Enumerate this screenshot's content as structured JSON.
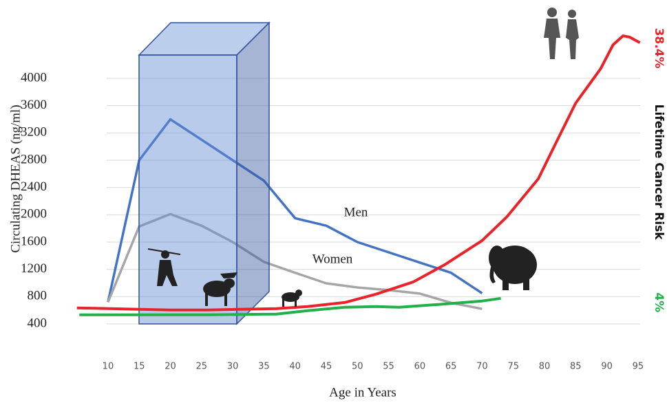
{
  "chart_data": {
    "type": "line",
    "xlabel": "Age in Years",
    "ylabel": "Circulating DHEAS (ng/ml)",
    "y2label": "Lifetime Cancer Risk",
    "xlim": [
      4,
      97
    ],
    "xticks": [
      10,
      15,
      20,
      25,
      30,
      35,
      40,
      45,
      50,
      55,
      60,
      65,
      70,
      75,
      80,
      85,
      90,
      95
    ],
    "ylim": [
      0,
      4800
    ],
    "yticks": [
      400,
      800,
      1200,
      1600,
      2000,
      2400,
      2800,
      3200,
      3600,
      4000
    ],
    "y2lim": [
      -2.6,
      41.7
    ],
    "y2ticks": [
      {
        "value": 4,
        "label": "4%"
      },
      {
        "value": 38.4,
        "label": "38.4%"
      }
    ],
    "grid": true,
    "series": [
      {
        "name": "Men",
        "color": "#4472c4",
        "x": [
          10,
          15,
          20,
          25,
          30,
          35,
          40,
          45,
          50,
          55,
          60,
          65,
          70
        ],
        "values": [
          720,
          2800,
          3400,
          3100,
          2800,
          2500,
          1950,
          1840,
          1600,
          1450,
          1300,
          1150,
          850
        ]
      },
      {
        "name": "Women",
        "color": "#a6a6a6",
        "x": [
          10,
          15,
          20,
          25,
          30,
          35,
          40,
          45,
          50,
          55,
          60,
          65,
          70
        ],
        "values": [
          720,
          1830,
          2010,
          1840,
          1600,
          1310,
          1150,
          995,
          935,
          895,
          845,
          710,
          620
        ]
      },
      {
        "color": "#e8232a",
        "axis": "y2",
        "x": [
          5,
          15,
          20,
          26,
          31,
          37,
          42,
          48,
          53,
          59,
          64,
          70,
          74,
          79,
          82,
          85,
          89,
          91,
          92.6,
          93.7,
          95.3
        ],
        "values": [
          3.26,
          3.07,
          2.98,
          2.98,
          3.07,
          3.16,
          3.44,
          4,
          5.12,
          6.79,
          9.11,
          12.37,
          15.62,
          20.73,
          25.85,
          30.96,
          35.61,
          38.86,
          40.07,
          39.89,
          39.14
        ]
      },
      {
        "color": "#22b04a",
        "axis": "y2",
        "x": [
          5.4,
          15,
          26,
          37,
          42,
          48,
          53,
          56.7,
          64.4,
          70,
          73
        ],
        "values": [
          2.33,
          2.33,
          2.33,
          2.42,
          2.88,
          3.35,
          3.44,
          3.35,
          3.81,
          4.19,
          4.56
        ]
      }
    ]
  }
}
